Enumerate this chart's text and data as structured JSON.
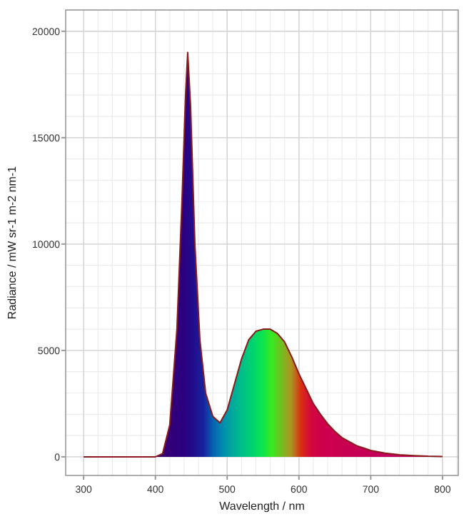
{
  "chart_data": {
    "type": "area",
    "xlabel": "Wavelength / nm",
    "ylabel": "Radiance / mW sr-1 m-2 nm-1",
    "x": [
      300,
      400,
      410,
      420,
      430,
      437,
      442,
      445,
      449,
      455,
      462,
      470,
      480,
      490,
      500,
      510,
      520,
      530,
      540,
      550,
      560,
      570,
      580,
      590,
      600,
      610,
      620,
      630,
      640,
      650,
      660,
      680,
      700,
      720,
      740,
      760,
      780,
      800
    ],
    "series": [
      {
        "color": "#8b1a1a",
        "values": [
          0,
          0,
          150,
          1500,
          6000,
          12000,
          17000,
          19000,
          16500,
          10000,
          5500,
          3000,
          1900,
          1600,
          2200,
          3400,
          4600,
          5500,
          5900,
          6000,
          6000,
          5800,
          5400,
          4700,
          3900,
          3200,
          2500,
          2000,
          1550,
          1200,
          900,
          530,
          300,
          170,
          100,
          60,
          30,
          15
        ]
      }
    ],
    "xlim": [
      275,
      822
    ],
    "ylim": [
      -875,
      21000
    ],
    "xticks": [
      300,
      400,
      500,
      600,
      700,
      800
    ],
    "yticks": [
      0,
      5000,
      10000,
      15000,
      20000
    ],
    "grid": true
  }
}
